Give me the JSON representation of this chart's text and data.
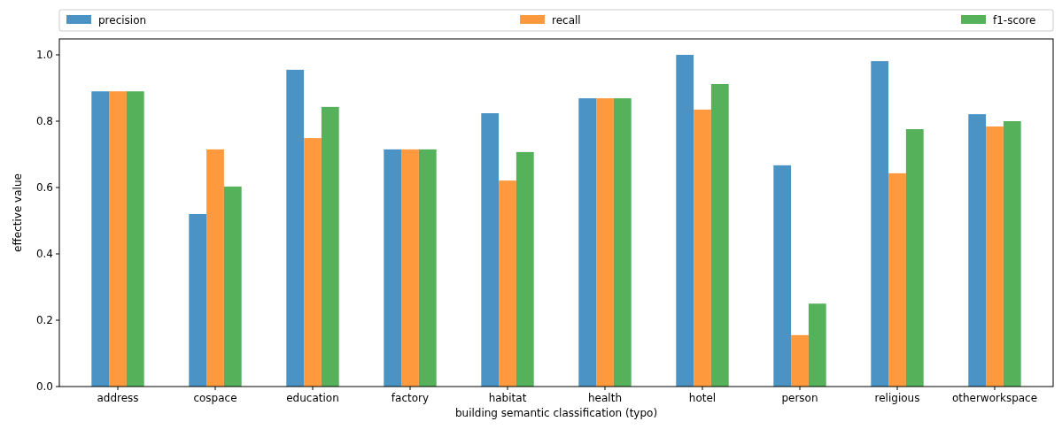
{
  "chart_data": {
    "type": "bar",
    "xlabel": "building semantic classification (typo)",
    "ylabel": "effective value",
    "categories": [
      "address",
      "cospace",
      "education",
      "factory",
      "habitat",
      "health",
      "hotel",
      "person",
      "religious",
      "otherworkspace"
    ],
    "series": [
      {
        "name": "precision",
        "color": "#4c93c5",
        "values": [
          0.89,
          0.52,
          0.955,
          0.715,
          0.824,
          0.869,
          1.0,
          0.667,
          0.981,
          0.821
        ]
      },
      {
        "name": "recall",
        "color": "#ff993e",
        "values": [
          0.89,
          0.715,
          0.749,
          0.715,
          0.621,
          0.869,
          0.835,
          0.155,
          0.643,
          0.784
        ]
      },
      {
        "name": "f1-score",
        "color": "#55b25a",
        "values": [
          0.89,
          0.603,
          0.843,
          0.715,
          0.707,
          0.869,
          0.912,
          0.25,
          0.776,
          0.8
        ]
      }
    ],
    "ylim": [
      0,
      1.048
    ],
    "yticks": [
      {
        "value": 0,
        "label": "0.0"
      },
      {
        "value": 0.2,
        "label": "0.2"
      },
      {
        "value": 0.4,
        "label": "0.4"
      },
      {
        "value": 0.6,
        "label": "0.6"
      },
      {
        "value": 0.8,
        "label": "0.8"
      },
      {
        "value": 1,
        "label": "1.0"
      }
    ],
    "grid": false,
    "legend": "top"
  }
}
